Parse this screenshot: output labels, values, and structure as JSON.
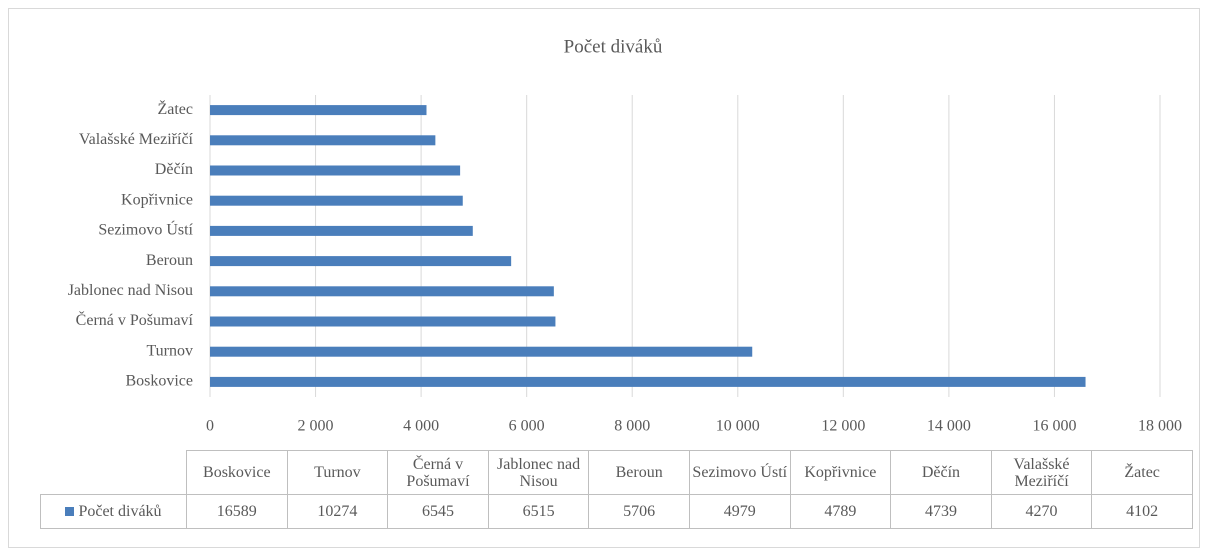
{
  "chart_data": {
    "type": "hbar",
    "title": "Počet diváků",
    "categories": [
      "Boskovice",
      "Turnov",
      "Černá v Pošumaví",
      "Jablonec nad Nisou",
      "Beroun",
      "Sezimovo Ústí",
      "Kopřivnice",
      "Děčín",
      "Valašské Meziříčí",
      "Žatec"
    ],
    "series": [
      {
        "name": "Počet diváků",
        "color": "#4a7ebb",
        "values": [
          16589,
          10274,
          6545,
          6515,
          5706,
          4979,
          4789,
          4739,
          4270,
          4102
        ]
      }
    ],
    "xlim": [
      0,
      18000
    ],
    "xticks": [
      0,
      {
        "value": 2000,
        "label": "2 000"
      },
      {
        "value": 4000,
        "label": "4 000"
      },
      {
        "value": 6000,
        "label": "6 000"
      },
      {
        "value": 8000,
        "label": "8 000"
      },
      {
        "value": 10000,
        "label": "10 000"
      },
      {
        "value": 12000,
        "label": "12 000"
      },
      {
        "value": 14000,
        "label": "14 000"
      },
      {
        "value": 16000,
        "label": "16 000"
      },
      {
        "value": 18000,
        "label": "18 000"
      }
    ],
    "grid": true,
    "data_table": true
  }
}
